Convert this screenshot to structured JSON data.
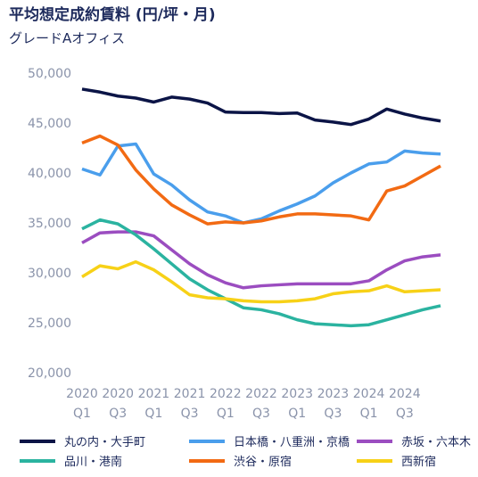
{
  "chart_data": {
    "type": "line",
    "title": "平均想定成約賃料 (円/坪・月)",
    "subtitle": "グレードAオフィス",
    "categories": [
      "2020 Q1",
      null,
      "2020 Q3",
      null,
      "2021 Q1",
      null,
      "2021 Q3",
      null,
      "2022 Q1",
      null,
      "2022 Q3",
      null,
      "2023 Q1",
      null,
      "2023 Q3",
      null,
      "2024 Q1",
      null,
      "2024 Q3",
      null,
      null
    ],
    "ylim": [
      20000,
      50000
    ],
    "yticks": [
      {
        "value": 20000,
        "label": "20,000"
      },
      {
        "value": 25000,
        "label": "25,000"
      },
      {
        "value": 30000,
        "label": "30,000"
      },
      {
        "value": 35000,
        "label": "35,000"
      },
      {
        "value": 40000,
        "label": "40,000"
      },
      {
        "value": 45000,
        "label": "45,000"
      },
      {
        "value": 50000,
        "label": "50,000"
      }
    ],
    "grid": false,
    "legend": "bottom",
    "series": [
      {
        "name": "丸の内・大手町",
        "color": "#0b1446",
        "values": [
          48400,
          48100,
          47700,
          47500,
          47100,
          47600,
          47400,
          47000,
          46100,
          46050,
          46050,
          45950,
          46000,
          45300,
          45100,
          44850,
          45400,
          46400,
          45900,
          45500,
          45200
        ]
      },
      {
        "name": "日本橋・八重洲・京橋",
        "color": "#4a9eec",
        "values": [
          40400,
          39800,
          42700,
          42900,
          39900,
          38800,
          37300,
          36100,
          35700,
          35000,
          35400,
          36200,
          36900,
          37700,
          39000,
          40000,
          40900,
          41100,
          42200,
          42000,
          41900
        ]
      },
      {
        "name": "赤坂・六本木",
        "color": "#9b4dc0",
        "values": [
          33000,
          34000,
          34100,
          34100,
          33700,
          32300,
          30900,
          29800,
          29000,
          28500,
          28700,
          28800,
          28900,
          28900,
          28900,
          28900,
          29200,
          30300,
          31200,
          31600,
          31800
        ]
      },
      {
        "name": "品川・港南",
        "color": "#2bb3a0",
        "values": [
          34400,
          35300,
          34900,
          33800,
          32400,
          30900,
          29400,
          28300,
          27400,
          26500,
          26300,
          25900,
          25300,
          24900,
          24800,
          24700,
          24800,
          25300,
          25800,
          26300,
          26700
        ]
      },
      {
        "name": "渋谷・原宿",
        "color": "#f26a13",
        "values": [
          43000,
          43700,
          42800,
          40300,
          38400,
          36800,
          35800,
          34900,
          35100,
          35000,
          35200,
          35600,
          35900,
          35900,
          35800,
          35700,
          35300,
          38200,
          38700,
          39700,
          40700
        ]
      },
      {
        "name": "西新宿",
        "color": "#f7d117",
        "values": [
          29600,
          30700,
          30400,
          31100,
          30300,
          29100,
          27800,
          27500,
          27400,
          27200,
          27100,
          27100,
          27200,
          27400,
          27900,
          28100,
          28200,
          28700,
          28100,
          28200,
          28300
        ]
      }
    ]
  }
}
